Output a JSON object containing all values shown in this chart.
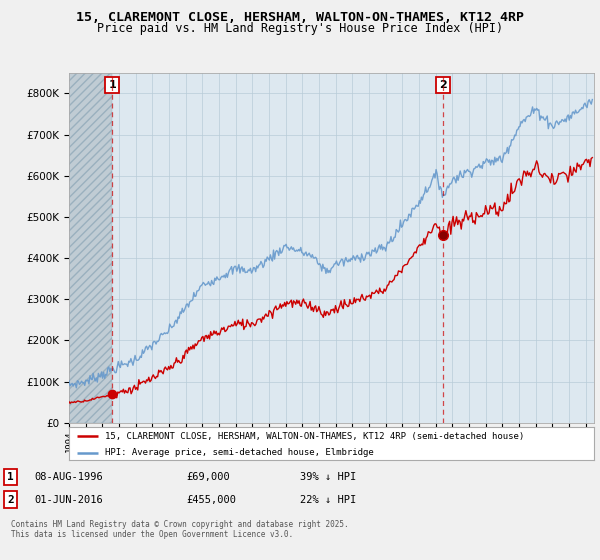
{
  "title_line1": "15, CLAREMONT CLOSE, HERSHAM, WALTON-ON-THAMES, KT12 4RP",
  "title_line2": "Price paid vs. HM Land Registry's House Price Index (HPI)",
  "legend_red": "15, CLAREMONT CLOSE, HERSHAM, WALTON-ON-THAMES, KT12 4RP (semi-detached house)",
  "legend_blue": "HPI: Average price, semi-detached house, Elmbridge",
  "footnote": "Contains HM Land Registry data © Crown copyright and database right 2025.\nThis data is licensed under the Open Government Licence v3.0.",
  "marker1_date": "08-AUG-1996",
  "marker1_price": 69000,
  "marker1_label": "39% ↓ HPI",
  "marker2_date": "01-JUN-2016",
  "marker2_price": 455000,
  "marker2_label": "22% ↓ HPI",
  "ylim": [
    0,
    850000
  ],
  "xlim_start": 1994.0,
  "xlim_end": 2025.5,
  "background_color": "#f0f0f0",
  "plot_bg_color": "#dde8f0",
  "red_color": "#cc0000",
  "blue_color": "#6699cc",
  "marker1_x": 1996.6,
  "marker2_x": 2016.42,
  "shaded_hatch_color": "#c0ccd4",
  "grid_color": "#b8ccd8",
  "marker1_price_exact": 69000,
  "marker2_price_exact": 455000
}
